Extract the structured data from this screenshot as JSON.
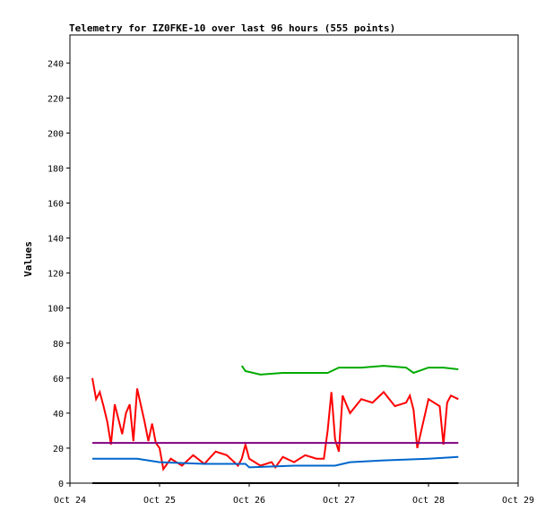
{
  "chart_data": {
    "type": "line",
    "title": "Telemetry for IZ0FKE-10 over last 96 hours (555 points)",
    "xlabel": "",
    "ylabel": "Values",
    "ylim": [
      0,
      256
    ],
    "yticks": [
      0,
      20,
      40,
      60,
      80,
      100,
      120,
      140,
      160,
      180,
      200,
      220,
      240
    ],
    "xlim": [
      "2023-10-24T00:00",
      "2023-10-29T00:00"
    ],
    "xtick_labels": [
      "Oct 24",
      "Oct 25",
      "Oct 26",
      "Oct 27",
      "Oct 28",
      "Oct 29"
    ],
    "grid": false,
    "legend": "none",
    "series": [
      {
        "color": "#ff0000",
        "x": [
          "2023-10-24T06:00",
          "2023-10-24T07:00",
          "2023-10-24T08:00",
          "2023-10-24T09:00",
          "2023-10-24T10:00",
          "2023-10-24T11:00",
          "2023-10-24T12:00",
          "2023-10-24T14:00",
          "2023-10-24T15:00",
          "2023-10-24T16:00",
          "2023-10-24T17:00",
          "2023-10-24T18:00",
          "2023-10-24T20:00",
          "2023-10-24T21:00",
          "2023-10-24T22:00",
          "2023-10-24T23:00",
          "2023-10-25T00:00",
          "2023-10-25T01:00",
          "2023-10-25T03:00",
          "2023-10-25T06:00",
          "2023-10-25T09:00",
          "2023-10-25T12:00",
          "2023-10-25T15:00",
          "2023-10-25T18:00",
          "2023-10-25T21:00",
          "2023-10-25T22:00",
          "2023-10-25T23:00",
          "2023-10-26T00:00",
          "2023-10-26T03:00",
          "2023-10-26T06:00",
          "2023-10-26T07:00",
          "2023-10-26T09:00",
          "2023-10-26T12:00",
          "2023-10-26T15:00",
          "2023-10-26T18:00",
          "2023-10-26T20:00",
          "2023-10-26T21:00",
          "2023-10-26T22:00",
          "2023-10-26T23:00",
          "2023-10-27T00:00",
          "2023-10-27T01:00",
          "2023-10-27T03:00",
          "2023-10-27T06:00",
          "2023-10-27T09:00",
          "2023-10-27T12:00",
          "2023-10-27T15:00",
          "2023-10-27T18:00",
          "2023-10-27T19:00",
          "2023-10-27T20:00",
          "2023-10-27T21:00",
          "2023-10-28T00:00",
          "2023-10-28T03:00",
          "2023-10-28T04:00",
          "2023-10-28T05:00",
          "2023-10-28T06:00",
          "2023-10-28T08:00"
        ],
        "values": [
          60,
          48,
          52,
          44,
          35,
          22,
          45,
          28,
          40,
          45,
          24,
          54,
          35,
          24,
          34,
          23,
          20,
          8,
          14,
          10,
          16,
          11,
          18,
          16,
          10,
          14,
          22,
          14,
          10,
          12,
          9,
          15,
          12,
          16,
          14,
          14,
          30,
          52,
          25,
          18,
          50,
          40,
          48,
          46,
          52,
          44,
          46,
          50,
          42,
          20,
          48,
          44,
          22,
          46,
          50,
          48
        ]
      },
      {
        "color": "#00aa00",
        "x": [
          "2023-10-25T22:00",
          "2023-10-25T23:00",
          "2023-10-26T03:00",
          "2023-10-26T09:00",
          "2023-10-26T15:00",
          "2023-10-26T21:00",
          "2023-10-27T00:00",
          "2023-10-27T06:00",
          "2023-10-27T12:00",
          "2023-10-27T18:00",
          "2023-10-27T20:00",
          "2023-10-28T00:00",
          "2023-10-28T04:00",
          "2023-10-28T08:00"
        ],
        "values": [
          67,
          64,
          62,
          63,
          63,
          63,
          66,
          66,
          67,
          66,
          63,
          66,
          66,
          65
        ]
      },
      {
        "color": "#0066cc",
        "x": [
          "2023-10-24T06:00",
          "2023-10-24T18:00",
          "2023-10-25T00:00",
          "2023-10-25T12:00",
          "2023-10-25T23:00",
          "2023-10-26T00:00",
          "2023-10-26T12:00",
          "2023-10-26T23:00",
          "2023-10-27T03:00",
          "2023-10-27T12:00",
          "2023-10-28T00:00",
          "2023-10-28T08:00"
        ],
        "values": [
          14,
          14,
          12,
          11,
          11,
          9,
          10,
          10,
          12,
          13,
          14,
          15
        ]
      },
      {
        "color": "#800080",
        "x": [
          "2023-10-24T06:00",
          "2023-10-28T08:00"
        ],
        "values": [
          23,
          23
        ]
      },
      {
        "color": "#000000",
        "x": [
          "2023-10-24T06:00",
          "2023-10-28T08:00"
        ],
        "values": [
          0,
          0
        ]
      }
    ]
  }
}
